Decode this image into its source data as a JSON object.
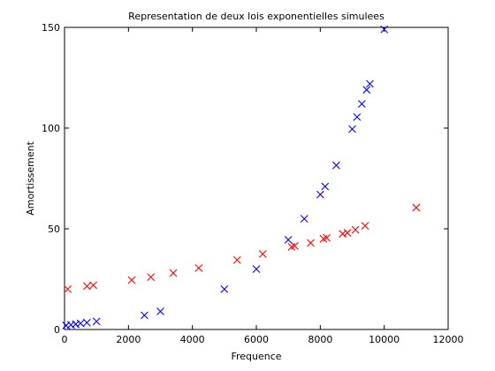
{
  "chart_data": {
    "type": "scatter",
    "title": "Representation de deux lois exponentielles simulees",
    "xlabel": "Frequence",
    "ylabel": "Amortissement",
    "xlim": [
      0,
      12000
    ],
    "ylim": [
      0,
      150
    ],
    "xticks": [
      0,
      2000,
      4000,
      6000,
      8000,
      10000,
      12000
    ],
    "yticks": [
      0,
      50,
      100,
      150
    ],
    "grid": false,
    "marker": "x",
    "series": [
      {
        "color": "#0000ff",
        "points": [
          [
            50,
            2
          ],
          [
            200,
            2.3
          ],
          [
            350,
            2.6
          ],
          [
            500,
            3
          ],
          [
            700,
            3.4
          ],
          [
            1000,
            4
          ],
          [
            2500,
            7
          ],
          [
            3000,
            9
          ],
          [
            5000,
            20
          ],
          [
            6000,
            30
          ],
          [
            7000,
            44.5
          ],
          [
            7500,
            55
          ],
          [
            8000,
            67
          ],
          [
            8150,
            71
          ],
          [
            8500,
            81.5
          ],
          [
            9000,
            99.5
          ],
          [
            9150,
            105.5
          ],
          [
            9300,
            112
          ],
          [
            9450,
            119
          ],
          [
            9550,
            122
          ],
          [
            10000,
            149
          ]
        ]
      },
      {
        "color": "#ff0000",
        "points": [
          [
            100,
            20
          ],
          [
            700,
            21.5
          ],
          [
            900,
            22
          ],
          [
            2100,
            24.5
          ],
          [
            2700,
            26
          ],
          [
            3400,
            28
          ],
          [
            4200,
            30.5
          ],
          [
            5400,
            34.5
          ],
          [
            6200,
            37.5
          ],
          [
            7100,
            41
          ],
          [
            7200,
            41.5
          ],
          [
            7700,
            43
          ],
          [
            8100,
            45
          ],
          [
            8200,
            45.5
          ],
          [
            8700,
            47.5
          ],
          [
            8850,
            48
          ],
          [
            9100,
            49.5
          ],
          [
            9400,
            51.5
          ],
          [
            11000,
            60.5
          ]
        ]
      }
    ]
  }
}
